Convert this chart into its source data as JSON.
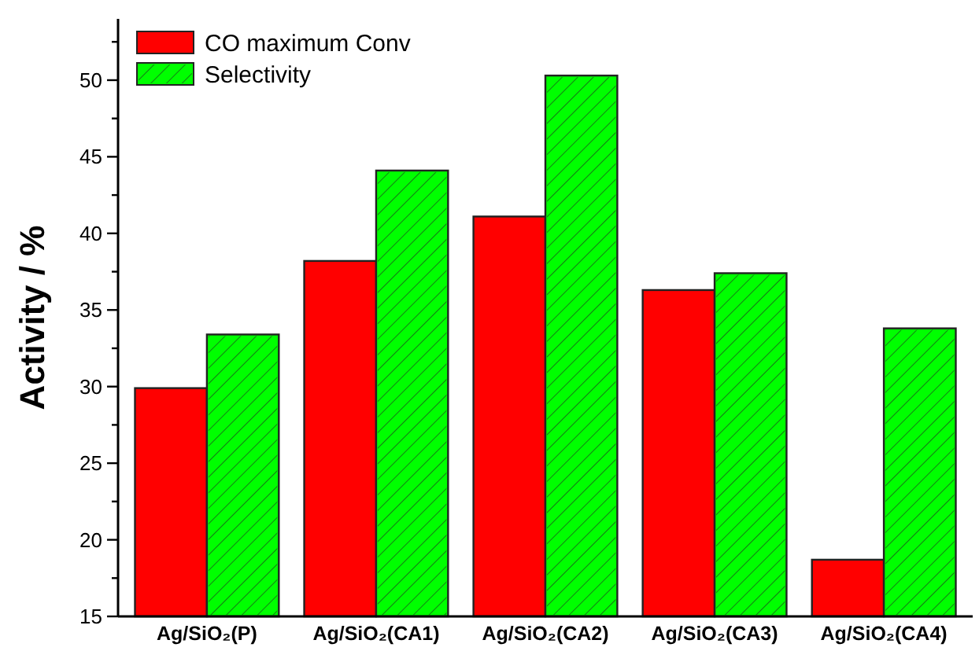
{
  "chart_data": {
    "type": "bar",
    "ylabel": "Activity / %",
    "categories": [
      "Ag/SiO₂(P)",
      "Ag/SiO₂(CA1)",
      "Ag/SiO₂(CA2)",
      "Ag/SiO₂(CA3)",
      "Ag/SiO₂(CA4)"
    ],
    "series": [
      {
        "name": "CO maximum Conv",
        "color": "#ff0000",
        "values": [
          29.9,
          38.2,
          41.1,
          36.3,
          18.7
        ]
      },
      {
        "name": "Selectivity",
        "color": "#00ff00",
        "values": [
          33.4,
          44.1,
          50.3,
          37.4,
          33.8
        ]
      }
    ],
    "ylim": [
      15,
      54
    ],
    "yticks": [
      15,
      {
        "value": 17.5,
        "label": null
      },
      20,
      {
        "value": 22.5,
        "label": null
      },
      25,
      {
        "value": 27.5,
        "label": null
      },
      30,
      {
        "value": 32.5,
        "label": null
      },
      35,
      {
        "value": 37.5,
        "label": null
      },
      40,
      {
        "value": 42.5,
        "label": null
      },
      45,
      {
        "value": 47.5,
        "label": null
      },
      50,
      {
        "value": 52.5,
        "label": null
      }
    ],
    "legend": "top left",
    "grid": false
  }
}
